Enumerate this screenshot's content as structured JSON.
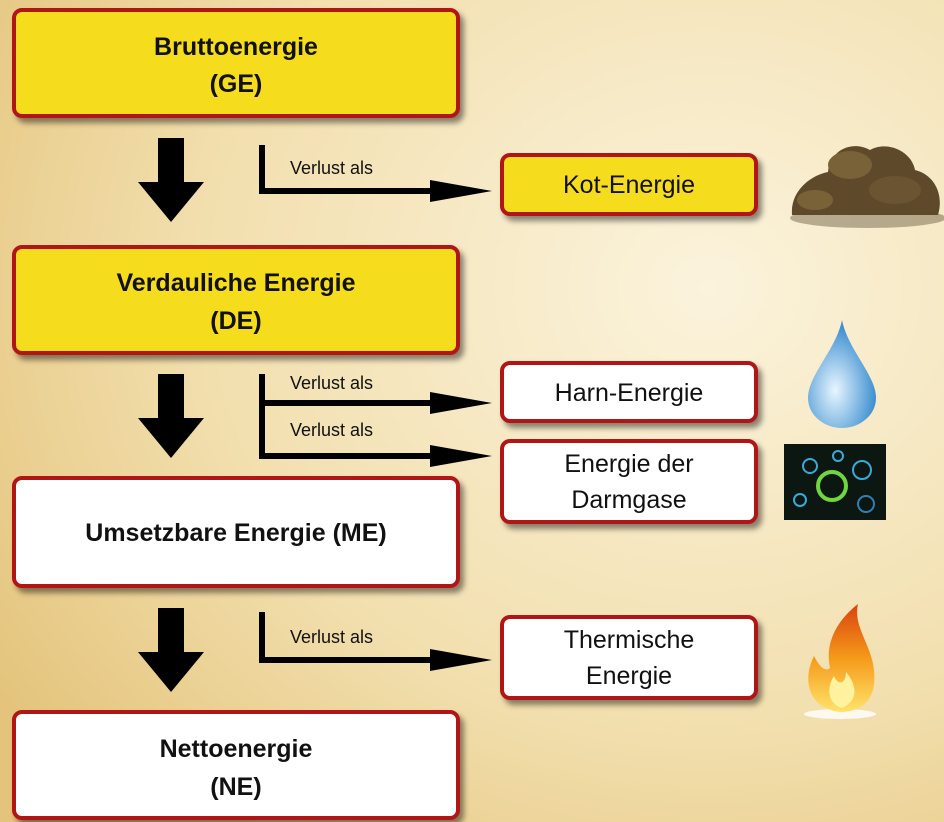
{
  "nodes": [
    {
      "lines": [
        "Bruttoenergie",
        "(GE)"
      ]
    },
    {
      "lines": [
        "Verdauliche Energie",
        "(DE)"
      ]
    },
    {
      "lines": [
        "Umsetzbare Energie (ME)"
      ]
    },
    {
      "lines": [
        "Nettoenergie",
        "(NE)"
      ]
    }
  ],
  "losses": [
    {
      "edge_label": "Verlust als",
      "lines": [
        "Kot-Energie"
      ]
    },
    {
      "edge_label": "Verlust als",
      "lines": [
        "Harn-Energie"
      ]
    },
    {
      "edge_label": "Verlust als",
      "lines": [
        "Energie der",
        "Darmgase"
      ]
    },
    {
      "edge_label": "Verlust als",
      "lines": [
        "Thermische",
        "Energie"
      ]
    }
  ]
}
